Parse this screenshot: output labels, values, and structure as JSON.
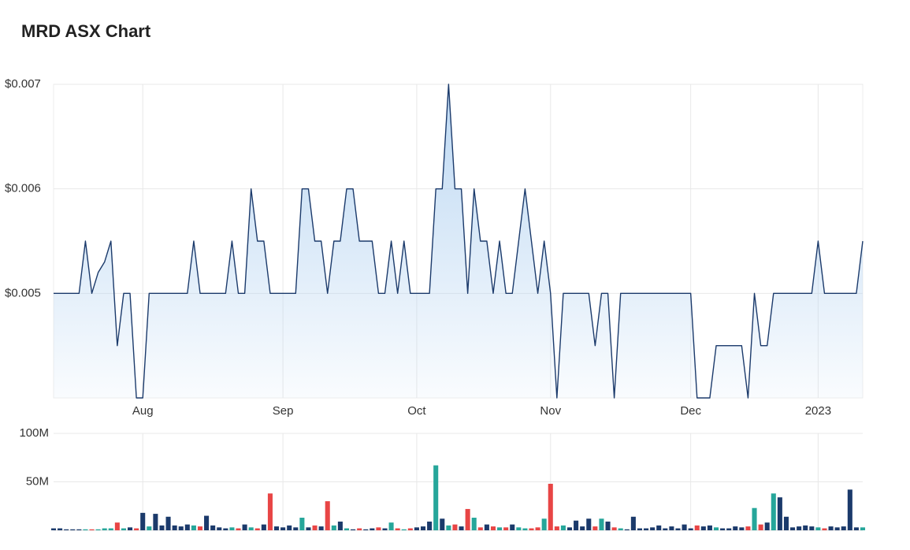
{
  "title": "MRD ASX Chart",
  "chart_data": [
    {
      "type": "line",
      "color": "#1b3a6b",
      "fill": "#b9d6f2",
      "categories": [
        null,
        null,
        null,
        null,
        null,
        null,
        null,
        null,
        null,
        null,
        null,
        null,
        null,
        null,
        "Aug",
        null,
        null,
        null,
        null,
        null,
        null,
        null,
        null,
        null,
        null,
        null,
        null,
        null,
        null,
        null,
        null,
        null,
        null,
        null,
        null,
        null,
        "Sep",
        null,
        null,
        null,
        null,
        null,
        null,
        null,
        null,
        null,
        null,
        null,
        null,
        null,
        null,
        null,
        null,
        null,
        null,
        null,
        null,
        "Oct",
        null,
        null,
        null,
        null,
        null,
        null,
        null,
        null,
        null,
        null,
        null,
        null,
        null,
        null,
        null,
        null,
        null,
        null,
        null,
        null,
        "Nov",
        null,
        null,
        null,
        null,
        null,
        null,
        null,
        null,
        null,
        null,
        null,
        null,
        null,
        null,
        null,
        null,
        null,
        null,
        null,
        null,
        null,
        "Dec",
        null,
        null,
        null,
        null,
        null,
        null,
        null,
        null,
        null,
        null,
        null,
        null,
        null,
        null,
        null,
        null,
        null,
        null,
        null,
        "2023",
        null,
        null,
        null,
        null,
        null,
        null,
        null
      ],
      "values": [
        0.005,
        0.005,
        0.005,
        0.005,
        0.005,
        0.0055,
        0.005,
        0.0052,
        0.0053,
        0.0055,
        0.0045,
        0.005,
        0.005,
        0.004,
        0.004,
        0.005,
        0.005,
        0.005,
        0.005,
        0.005,
        0.005,
        0.005,
        0.0055,
        0.005,
        0.005,
        0.005,
        0.005,
        0.005,
        0.0055,
        0.005,
        0.005,
        0.006,
        0.0055,
        0.0055,
        0.005,
        0.005,
        0.005,
        0.005,
        0.005,
        0.006,
        0.006,
        0.0055,
        0.0055,
        0.005,
        0.0055,
        0.0055,
        0.006,
        0.006,
        0.0055,
        0.0055,
        0.0055,
        0.005,
        0.005,
        0.0055,
        0.005,
        0.0055,
        0.005,
        0.005,
        0.005,
        0.005,
        0.006,
        0.006,
        0.007,
        0.006,
        0.006,
        0.005,
        0.006,
        0.0055,
        0.0055,
        0.005,
        0.0055,
        0.005,
        0.005,
        0.0055,
        0.006,
        0.0055,
        0.005,
        0.0055,
        0.005,
        0.004,
        0.005,
        0.005,
        0.005,
        0.005,
        0.005,
        0.0045,
        0.005,
        0.005,
        0.004,
        0.005,
        0.005,
        0.005,
        0.005,
        0.005,
        0.005,
        0.005,
        0.005,
        0.005,
        0.005,
        0.005,
        0.005,
        0.004,
        0.004,
        0.004,
        0.0045,
        0.0045,
        0.0045,
        0.0045,
        0.0045,
        0.004,
        0.005,
        0.0045,
        0.0045,
        0.005,
        0.005,
        0.005,
        0.005,
        0.005,
        0.005,
        0.005,
        0.0055,
        0.005,
        0.005,
        0.005,
        0.005,
        0.005,
        0.005,
        0.0055
      ],
      "ylim": [
        0.004,
        0.007
      ],
      "yticks": [
        {
          "value": 0.005,
          "label": "$0.005"
        },
        {
          "value": 0.006,
          "label": "$0.006"
        },
        {
          "value": 0.007,
          "label": "$0.007"
        }
      ],
      "grid": true
    },
    {
      "type": "bar",
      "up_color": "#26a69a",
      "down_color": "#e84545",
      "flat_color": "#1b3a6b",
      "values": [
        2000000,
        2000000,
        1000000,
        1000000,
        1000000,
        1000000,
        1000000,
        1000000,
        2000000,
        2000000,
        8000000,
        2000000,
        3000000,
        2000000,
        18000000,
        4000000,
        17000000,
        5000000,
        14000000,
        5000000,
        4000000,
        6000000,
        5000000,
        4000000,
        15000000,
        5000000,
        3000000,
        2000000,
        3000000,
        2000000,
        6000000,
        3000000,
        2000000,
        6000000,
        38000000,
        4000000,
        3000000,
        5000000,
        3000000,
        13000000,
        3000000,
        5000000,
        4000000,
        30000000,
        5000000,
        9000000,
        2000000,
        1000000,
        2000000,
        1000000,
        2000000,
        3000000,
        2000000,
        8000000,
        2000000,
        1000000,
        2000000,
        3000000,
        4000000,
        9000000,
        67000000,
        12000000,
        5000000,
        6000000,
        4000000,
        22000000,
        13000000,
        3000000,
        6000000,
        4000000,
        3000000,
        3000000,
        6000000,
        3000000,
        2000000,
        2000000,
        3000000,
        12000000,
        48000000,
        4000000,
        5000000,
        3000000,
        10000000,
        4000000,
        12000000,
        4000000,
        12000000,
        9000000,
        3000000,
        2000000,
        1000000,
        14000000,
        2000000,
        2000000,
        3000000,
        5000000,
        2000000,
        4000000,
        2000000,
        6000000,
        2000000,
        5000000,
        4000000,
        5000000,
        3000000,
        2000000,
        2000000,
        4000000,
        3000000,
        4000000,
        23000000,
        6000000,
        8000000,
        38000000,
        34000000,
        14000000,
        3000000,
        4000000,
        5000000,
        4000000,
        3000000,
        2000000,
        4000000,
        3000000,
        4000000,
        42000000,
        3000000,
        3000000
      ],
      "ylim": [
        0,
        100000000
      ],
      "yticks": [
        {
          "value": 50000000,
          "label": "50M"
        },
        {
          "value": 100000000,
          "label": "100M"
        }
      ],
      "grid": true
    }
  ]
}
